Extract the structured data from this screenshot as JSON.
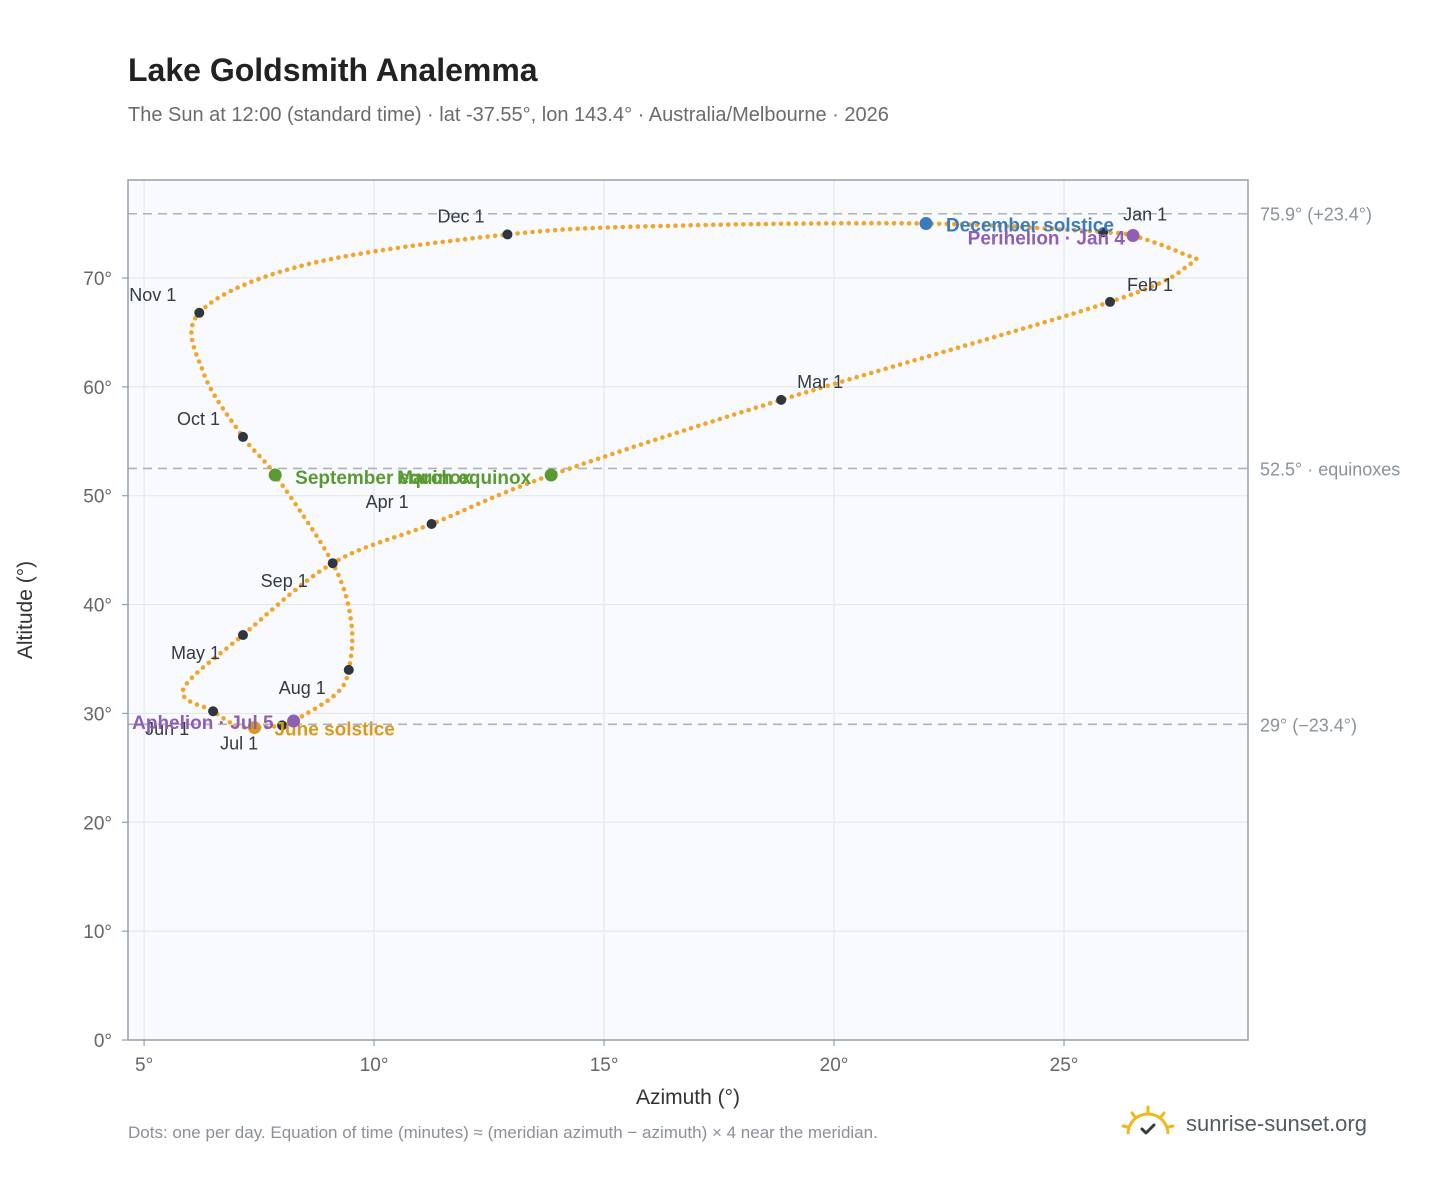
{
  "title": "Lake Goldsmith Analemma",
  "subtitle": "The Sun at 12:00 (standard time) · lat -37.55°, lon 143.4° · Australia/Melbourne · 2026",
  "footnote": "Dots: one per day. Equation of time (minutes) ≈ (meridian azimuth − azimuth) × 4 near the meridian.",
  "brand": {
    "text": "sunrise-sunset.org",
    "icon": "sun-icon"
  },
  "colors": {
    "path": "#f2a52a",
    "month_dot": "#2f3640",
    "solstice_dec": "#3a7abf",
    "solstice_jun": "#d99a1e",
    "equinox": "#5a9a32",
    "apsis": "#8e5fb3",
    "reference_line": "#aab4c0",
    "plot_bg": "#f8fafd",
    "grid": "#e3e8ef",
    "axis": "#94a0ae",
    "tick_text": "#666666"
  },
  "chart_data": {
    "type": "scatter",
    "xlabel": "Azimuth (°)",
    "ylabel": "Altitude (°)",
    "xlim": [
      4.65,
      29
    ],
    "ylim": [
      0,
      79
    ],
    "grid": true,
    "x_ticks": [
      {
        "value": 5,
        "label": "5°"
      },
      {
        "value": 10,
        "label": "10°"
      },
      {
        "value": 15,
        "label": "15°"
      },
      {
        "value": 20,
        "label": "20°"
      },
      {
        "value": 25,
        "label": "25°"
      }
    ],
    "y_ticks": [
      {
        "value": 0,
        "label": "0°"
      },
      {
        "value": 10,
        "label": "10°"
      },
      {
        "value": 20,
        "label": "20°"
      },
      {
        "value": 30,
        "label": "30°"
      },
      {
        "value": 40,
        "label": "40°"
      },
      {
        "value": 50,
        "label": "50°"
      },
      {
        "value": 60,
        "label": "60°"
      },
      {
        "value": 70,
        "label": "70°"
      }
    ],
    "reference_lines": [
      {
        "y": 75.9,
        "label": "75.9° (+23.4°)"
      },
      {
        "y": 52.5,
        "label": "52.5° · equinoxes"
      },
      {
        "y": 29.0,
        "label": "29° (−23.4°)"
      }
    ],
    "daily_path": [
      {
        "date": "Jan 1",
        "az": 25.85,
        "alt": 74.2
      },
      {
        "date": "Jan 4",
        "az": 26.5,
        "alt": 73.9
      },
      {
        "date": "Jan 15",
        "az": 27.6,
        "alt": 72.2
      },
      {
        "date": "Jan 20",
        "az": 27.75,
        "alt": 71.3
      },
      {
        "date": "Feb 1",
        "az": 26.0,
        "alt": 67.8
      },
      {
        "date": "Mar 1",
        "az": 18.85,
        "alt": 58.8
      },
      {
        "date": "Mar 20",
        "az": 13.85,
        "alt": 51.9
      },
      {
        "date": "Apr 1",
        "az": 11.25,
        "alt": 47.4
      },
      {
        "date": "Apr 15",
        "az": 9.1,
        "alt": 43.8
      },
      {
        "date": "May 1",
        "az": 7.15,
        "alt": 37.2
      },
      {
        "date": "May 20",
        "az": 5.85,
        "alt": 32.2
      },
      {
        "date": "Jun 1",
        "az": 6.5,
        "alt": 30.2
      },
      {
        "date": "Jun 15",
        "az": 7.0,
        "alt": 28.9
      },
      {
        "date": "Jun 21",
        "az": 7.4,
        "alt": 28.7
      },
      {
        "date": "Jul 1",
        "az": 8.0,
        "alt": 28.9
      },
      {
        "date": "Jul 5",
        "az": 8.25,
        "alt": 29.3
      },
      {
        "date": "Jul 20",
        "az": 9.15,
        "alt": 31.7
      },
      {
        "date": "Aug 1",
        "az": 9.45,
        "alt": 34.0
      },
      {
        "date": "Aug 15",
        "az": 9.5,
        "alt": 38.5
      },
      {
        "date": "Sep 1",
        "az": 9.1,
        "alt": 43.8
      },
      {
        "date": "Sep 22",
        "az": 7.85,
        "alt": 51.9
      },
      {
        "date": "Oct 1",
        "az": 7.15,
        "alt": 55.4
      },
      {
        "date": "Oct 15",
        "az": 6.3,
        "alt": 61.2
      },
      {
        "date": "Nov 1",
        "az": 6.2,
        "alt": 66.8
      },
      {
        "date": "Nov 15",
        "az": 8.5,
        "alt": 71.2
      },
      {
        "date": "Dec 1",
        "az": 12.9,
        "alt": 74.0
      },
      {
        "date": "Dec 10",
        "az": 16.5,
        "alt": 74.8
      },
      {
        "date": "Dec 21",
        "az": 22.0,
        "alt": 75.0
      },
      {
        "date": "Dec 31",
        "az": 25.6,
        "alt": 74.3
      }
    ],
    "month_markers": [
      {
        "label": "Jan 1",
        "az": 25.85,
        "alt": 74.2,
        "anchor": "end-of-year"
      },
      {
        "label": "Feb 1",
        "az": 26.0,
        "alt": 67.8
      },
      {
        "label": "Mar 1",
        "az": 18.85,
        "alt": 58.8
      },
      {
        "label": "Apr 1",
        "az": 11.25,
        "alt": 47.4
      },
      {
        "label": "May 1",
        "az": 7.15,
        "alt": 37.2
      },
      {
        "label": "Jun 1",
        "az": 6.5,
        "alt": 30.2
      },
      {
        "label": "Jul 1",
        "az": 8.0,
        "alt": 28.9
      },
      {
        "label": "Aug 1",
        "az": 9.45,
        "alt": 34.0
      },
      {
        "label": "Sep 1",
        "az": 9.1,
        "alt": 43.8
      },
      {
        "label": "Oct 1",
        "az": 7.15,
        "alt": 55.4
      },
      {
        "label": "Nov 1",
        "az": 6.2,
        "alt": 66.8
      },
      {
        "label": "Dec 1",
        "az": 12.9,
        "alt": 74.0
      }
    ],
    "events": [
      {
        "label": "December solstice",
        "az": 22.0,
        "alt": 75.0,
        "kind": "solstice_dec"
      },
      {
        "label": "Perihelion · Jan 4",
        "az": 26.5,
        "alt": 73.9,
        "kind": "apsis"
      },
      {
        "label": "March equinox",
        "az": 13.85,
        "alt": 51.9,
        "kind": "equinox"
      },
      {
        "label": "September equinox",
        "az": 7.85,
        "alt": 51.9,
        "kind": "equinox"
      },
      {
        "label": "June solstice",
        "az": 7.4,
        "alt": 28.7,
        "kind": "solstice_jun"
      },
      {
        "label": "Aphelion · Jul 5",
        "az": 8.25,
        "alt": 29.3,
        "kind": "apsis"
      }
    ]
  }
}
